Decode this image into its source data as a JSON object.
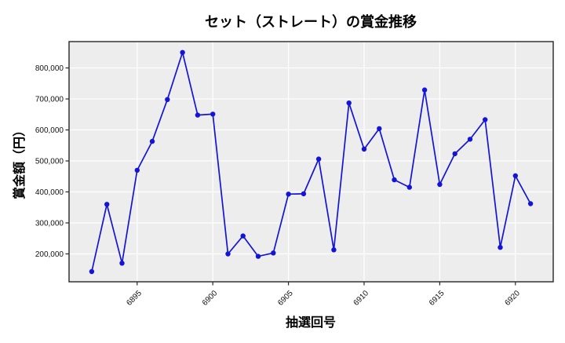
{
  "chart_data": {
    "type": "line",
    "title": "セット（ストレート）の賞金推移",
    "xlabel": "抽選回号",
    "ylabel": "賞金額（円）",
    "series_name": "賞金額",
    "x": [
      6892,
      6893,
      6894,
      6895,
      6896,
      6897,
      6898,
      6899,
      6900,
      6901,
      6902,
      6903,
      6904,
      6905,
      6906,
      6907,
      6908,
      6909,
      6910,
      6911,
      6912,
      6913,
      6914,
      6915,
      6916,
      6917,
      6918,
      6919,
      6920,
      6921
    ],
    "values": [
      143000,
      360000,
      170000,
      470000,
      563000,
      698000,
      850000,
      648000,
      651000,
      200000,
      258000,
      192000,
      203000,
      393000,
      394000,
      506000,
      213000,
      687000,
      538000,
      604000,
      439000,
      415000,
      729000,
      424000,
      523000,
      570000,
      633000,
      221000,
      452000,
      362000
    ],
    "xticks": [
      6895,
      6900,
      6905,
      6910,
      6915,
      6920
    ],
    "yticks": [
      200000,
      300000,
      400000,
      500000,
      600000,
      700000,
      800000
    ],
    "ytick_labels": [
      "200,000",
      "300,000",
      "400,000",
      "500,000",
      "600,000",
      "700,000",
      "800,000"
    ],
    "xlim": [
      6890.5,
      6922.5
    ],
    "ylim": [
      110000,
      885000
    ],
    "grid": true,
    "legend": "none",
    "marker": "circle",
    "colors": {
      "line": "#1414d6",
      "marker": "#1414d6",
      "plot_background": "#ededed",
      "grid": "#ffffff",
      "spine": "#262626",
      "tick_text": "#111111",
      "figure_background": "#ffffff"
    }
  }
}
